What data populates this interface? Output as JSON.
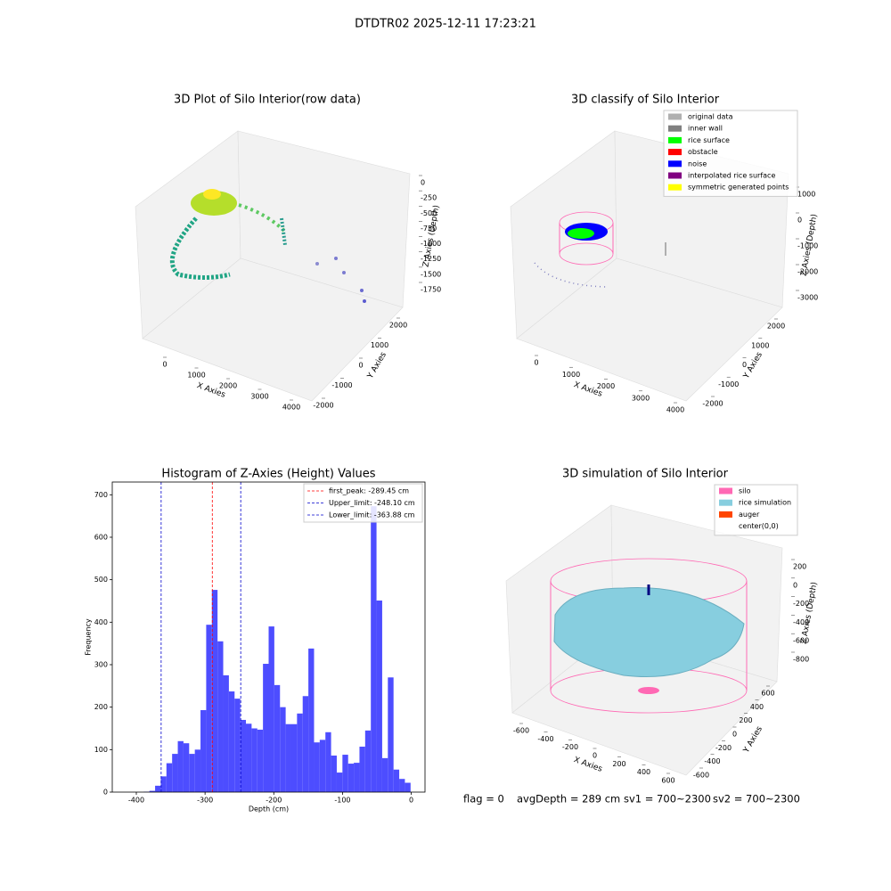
{
  "title": "DTDTR02 2025-12-11 17:23:21",
  "footer": [
    "flag = 0",
    "avgDepth = 289 cm",
    "sv1 = 700~2300",
    "sv2 = 700~2300"
  ],
  "chart_data": [
    {
      "type": "scatter3d",
      "title": "3D Plot of Silo Interior(row data)",
      "xlabel": "X Axies",
      "ylabel": "Y Axies",
      "zlabel": "Z Axies (Depth)",
      "xticks": [
        0,
        1000,
        2000,
        3000,
        4000
      ],
      "yticks": [
        -2000,
        -1000,
        0,
        1000,
        2000
      ],
      "zticks": [
        0,
        -250,
        -500,
        -750,
        -1000,
        -1250,
        -1500,
        -1750
      ]
    },
    {
      "type": "scatter3d",
      "title": "3D classify of Silo Interior",
      "xlabel": "X Axies",
      "ylabel": "Y Axies",
      "zlabel": "Z Axies (Depth)",
      "xticks": [
        0,
        1000,
        2000,
        3000,
        4000
      ],
      "yticks": [
        -2000,
        -1000,
        0,
        1000,
        2000
      ],
      "zticks": [
        1000,
        0,
        -1000,
        -2000,
        -3000
      ],
      "legend": [
        {
          "name": "original data",
          "color": "#b0b0b0"
        },
        {
          "name": "inner wall",
          "color": "#808080"
        },
        {
          "name": "rice surface",
          "color": "#00ff00"
        },
        {
          "name": "obstacle",
          "color": "#ff0000"
        },
        {
          "name": "noise",
          "color": "#0000ff"
        },
        {
          "name": "interpolated rice surface",
          "color": "#800080"
        },
        {
          "name": "symmetric generated points",
          "color": "#ffff00"
        }
      ]
    },
    {
      "type": "histogram",
      "title": "Histogram of Z-Axies (Height) Values",
      "xlabel": "Depth (cm)",
      "ylabel": "Frequency",
      "color": "#4d4dff",
      "bins": [
        -414,
        -405.74,
        -397.48,
        -389.22,
        -380.96,
        -372.7,
        -364.44,
        -356.18,
        -347.92,
        -339.66,
        -331.4,
        -323.14,
        -314.88,
        -306.62,
        -298.36,
        -290.1,
        -281.84,
        -273.58,
        -265.32,
        -257.06,
        -248.8,
        -240.54,
        -232.28,
        -224.02,
        -215.76,
        -207.5,
        -199.24,
        -190.98,
        -182.72,
        -174.46,
        -166.2,
        -157.94,
        -149.68,
        -141.42,
        -133.16,
        -124.9,
        -116.64,
        -108.38,
        -100.12,
        -91.86,
        -83.6,
        -75.34,
        -67.08,
        -58.82,
        -50.56,
        -42.3,
        -34.04,
        -25.78,
        -17.52,
        -9.26,
        -1
      ],
      "values": [
        0,
        0,
        0,
        1,
        3,
        15,
        37,
        68,
        90,
        120,
        115,
        90,
        100,
        193,
        394,
        476,
        355,
        275,
        237,
        220,
        170,
        161,
        150,
        147,
        302,
        390,
        252,
        200,
        160,
        160,
        185,
        226,
        338,
        117,
        123,
        141,
        86,
        46,
        88,
        67,
        69,
        107,
        145,
        673,
        451,
        80,
        270,
        53,
        31,
        22
      ],
      "xlim": [
        -435,
        20
      ],
      "ylim": [
        0,
        730
      ],
      "xticks": [
        -400,
        -300,
        -200,
        -100,
        0
      ],
      "yticks": [
        0,
        100,
        200,
        300,
        400,
        500,
        600,
        700
      ],
      "vlines": [
        {
          "name": "first_peak: -289.45 cm",
          "value": -289.45,
          "color": "#ff0000"
        },
        {
          "name": "Upper_limit: -248.10 cm",
          "value": -248.1,
          "color": "#0000cc"
        },
        {
          "name": "Lower_limit: -363.88 cm",
          "value": -363.88,
          "color": "#0000cc"
        }
      ]
    },
    {
      "type": "surface3d",
      "title": "3D simulation of Silo Interior",
      "xlabel": "X Axies",
      "ylabel": "Y Axies",
      "zlabel": "Z Axies (Depth)",
      "xticks": [
        -600,
        -400,
        -200,
        0,
        200,
        400,
        600
      ],
      "yticks": [
        -600,
        -400,
        -200,
        0,
        200,
        400,
        600
      ],
      "zticks": [
        200,
        0,
        -200,
        -400,
        -600,
        -800
      ],
      "legend": [
        {
          "name": "silo",
          "color": "#ff69b4"
        },
        {
          "name": "rice simulation",
          "color": "#87cedf"
        },
        {
          "name": "auger",
          "color": "#ff4500"
        },
        {
          "name": "center(0,0)",
          "color": null
        }
      ]
    }
  ]
}
